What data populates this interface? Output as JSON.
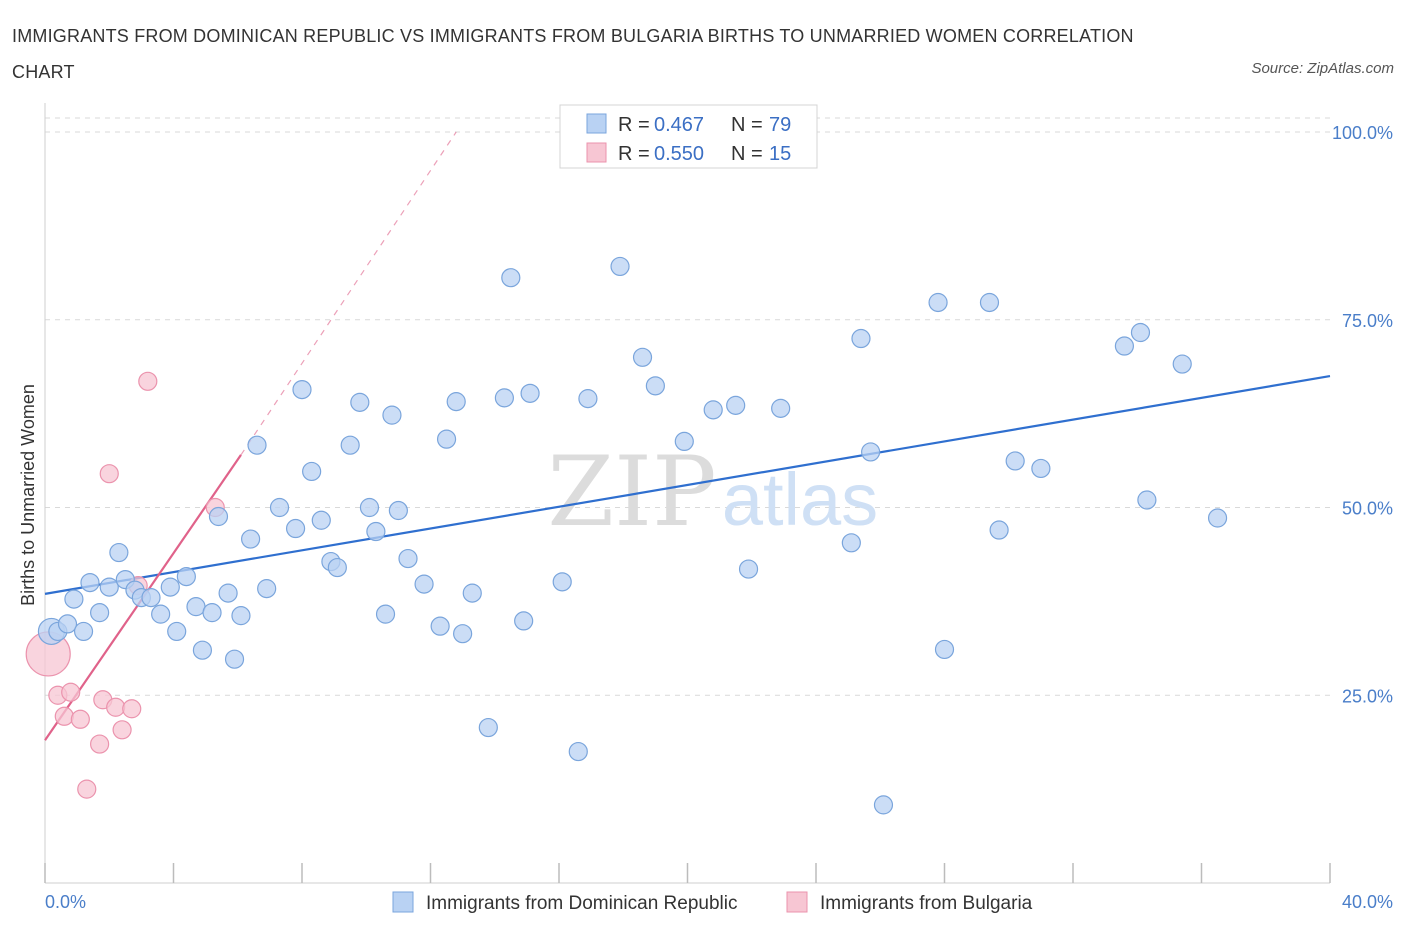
{
  "title": "IMMIGRANTS FROM DOMINICAN REPUBLIC VS IMMIGRANTS FROM BULGARIA BIRTHS TO UNMARRIED WOMEN CORRELATION CHART",
  "source": "Source: ZipAtlas.com",
  "watermark": {
    "zip": "ZIP",
    "atlas": "atlas"
  },
  "colors": {
    "blue_fill": "#b9d2f3",
    "blue_stroke": "#7aa5dc",
    "blue_line": "#2f6fcf",
    "pink_fill": "#f7c6d3",
    "pink_stroke": "#eb93ad",
    "pink_line": "#e0628a",
    "axis_text": "#4a7ec9",
    "grid": "#d9d9d9"
  },
  "legend": {
    "r_label": "R =",
    "n_label": "N =",
    "rows": [
      {
        "r": "0.467",
        "n": "79",
        "series": "blue"
      },
      {
        "r": "0.550",
        "n": "15",
        "series": "pink"
      }
    ]
  },
  "chart_data": {
    "type": "scatter",
    "xlabel": "",
    "ylabel": "Births to Unmarried Women",
    "xlim": [
      0,
      40
    ],
    "ylim": [
      0,
      100
    ],
    "x_tick_labels": [
      "0.0%",
      "40.0%"
    ],
    "y_tick_values": [
      25,
      50,
      75,
      100
    ],
    "y_tick_labels": [
      "25.0%",
      "50.0%",
      "75.0%",
      "100.0%"
    ],
    "grid": true,
    "legend_position": "bottom",
    "series": [
      {
        "name": "Immigrants from Dominican Republic",
        "color": "blue",
        "trend": {
          "x": [
            0,
            40
          ],
          "y": [
            38.5,
            67.5
          ]
        },
        "points": [
          [
            0.2,
            33.5
          ],
          [
            0.4,
            33.5
          ],
          [
            0.7,
            34.5
          ],
          [
            0.9,
            37.8
          ],
          [
            1.2,
            33.5
          ],
          [
            1.4,
            40.0
          ],
          [
            1.7,
            36.0
          ],
          [
            2.0,
            39.4
          ],
          [
            2.3,
            44.0
          ],
          [
            2.5,
            40.4
          ],
          [
            2.8,
            39.0
          ],
          [
            3.0,
            38.0
          ],
          [
            3.3,
            38.0
          ],
          [
            3.6,
            35.8
          ],
          [
            3.9,
            39.4
          ],
          [
            4.1,
            33.5
          ],
          [
            4.4,
            40.8
          ],
          [
            4.7,
            36.8
          ],
          [
            4.9,
            31.0
          ],
          [
            5.2,
            36.0
          ],
          [
            5.4,
            48.8
          ],
          [
            5.7,
            38.6
          ],
          [
            5.9,
            29.8
          ],
          [
            6.1,
            35.6
          ],
          [
            6.4,
            45.8
          ],
          [
            6.6,
            58.3
          ],
          [
            6.9,
            39.2
          ],
          [
            7.3,
            50.0
          ],
          [
            7.8,
            47.2
          ],
          [
            8.0,
            65.7
          ],
          [
            8.3,
            54.8
          ],
          [
            8.6,
            48.3
          ],
          [
            8.9,
            42.8
          ],
          [
            9.1,
            42.0
          ],
          [
            9.5,
            58.3
          ],
          [
            9.8,
            64.0
          ],
          [
            10.1,
            50.0
          ],
          [
            10.3,
            46.8
          ],
          [
            10.6,
            35.8
          ],
          [
            10.8,
            62.3
          ],
          [
            11.0,
            49.6
          ],
          [
            11.3,
            43.2
          ],
          [
            11.8,
            39.8
          ],
          [
            12.3,
            34.2
          ],
          [
            12.5,
            59.1
          ],
          [
            12.8,
            64.1
          ],
          [
            13.0,
            33.2
          ],
          [
            13.3,
            38.6
          ],
          [
            13.8,
            20.7
          ],
          [
            14.3,
            64.6
          ],
          [
            14.5,
            80.6
          ],
          [
            14.9,
            34.9
          ],
          [
            15.1,
            65.2
          ],
          [
            16.1,
            40.1
          ],
          [
            16.6,
            17.5
          ],
          [
            16.9,
            64.5
          ],
          [
            17.9,
            82.1
          ],
          [
            18.6,
            70.0
          ],
          [
            19.0,
            66.2
          ],
          [
            19.9,
            58.8
          ],
          [
            20.8,
            63.0
          ],
          [
            21.5,
            63.6
          ],
          [
            21.9,
            41.8
          ],
          [
            22.9,
            63.2
          ],
          [
            25.1,
            45.3
          ],
          [
            25.4,
            72.5
          ],
          [
            25.7,
            57.4
          ],
          [
            26.1,
            10.4
          ],
          [
            27.8,
            77.3
          ],
          [
            28.0,
            31.1
          ],
          [
            29.4,
            77.3
          ],
          [
            29.7,
            47.0
          ],
          [
            30.2,
            56.2
          ],
          [
            31.0,
            55.2
          ],
          [
            33.6,
            71.5
          ],
          [
            34.1,
            73.3
          ],
          [
            34.3,
            51.0
          ],
          [
            35.4,
            69.1
          ],
          [
            36.5,
            48.6
          ]
        ]
      },
      {
        "name": "Immigrants from Bulgaria",
        "color": "pink",
        "trend": {
          "x": [
            0,
            6.1
          ],
          "y": [
            19.0,
            57.0
          ]
        },
        "trend_extension": {
          "x": [
            6.1,
            12.8
          ],
          "y": [
            57.0,
            100.0
          ]
        },
        "points": [
          [
            0.1,
            30.5
          ],
          [
            0.4,
            25.0
          ],
          [
            0.6,
            22.2
          ],
          [
            0.8,
            25.4
          ],
          [
            1.1,
            21.8
          ],
          [
            1.3,
            12.5
          ],
          [
            1.7,
            18.5
          ],
          [
            1.8,
            24.4
          ],
          [
            2.0,
            54.5
          ],
          [
            2.2,
            23.4
          ],
          [
            2.4,
            20.4
          ],
          [
            2.7,
            23.2
          ],
          [
            2.9,
            39.6
          ],
          [
            3.2,
            66.8
          ],
          [
            5.3,
            50.0
          ]
        ]
      }
    ]
  }
}
